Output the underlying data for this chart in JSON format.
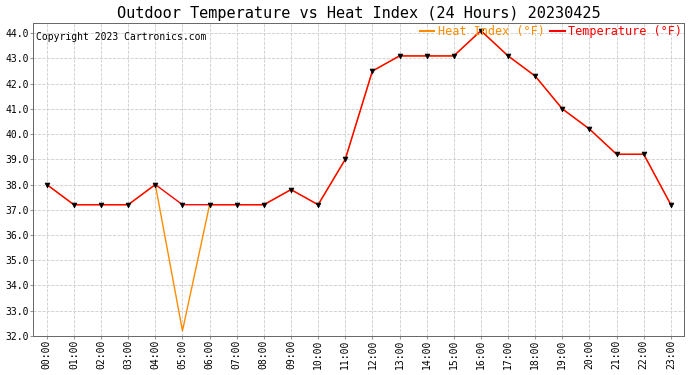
{
  "title": "Outdoor Temperature vs Heat Index (24 Hours) 20230425",
  "copyright": "Copyright 2023 Cartronics.com",
  "legend_heat": "Heat Index (°F)",
  "legend_temp": "Temperature (°F)",
  "hours": [
    "00:00",
    "01:00",
    "02:00",
    "03:00",
    "04:00",
    "05:00",
    "06:00",
    "07:00",
    "08:00",
    "09:00",
    "10:00",
    "11:00",
    "12:00",
    "13:00",
    "14:00",
    "15:00",
    "16:00",
    "17:00",
    "18:00",
    "19:00",
    "20:00",
    "21:00",
    "22:00",
    "23:00"
  ],
  "temperature": [
    38.0,
    37.2,
    37.2,
    37.2,
    38.0,
    37.2,
    37.2,
    37.2,
    37.2,
    37.8,
    37.2,
    39.0,
    42.5,
    43.1,
    43.1,
    43.1,
    44.1,
    43.1,
    42.3,
    41.0,
    40.2,
    39.2,
    39.2,
    37.2
  ],
  "heat_index": [
    38.0,
    37.2,
    37.2,
    37.2,
    38.0,
    32.2,
    37.2,
    37.2,
    37.2,
    37.8,
    37.2,
    39.0,
    42.5,
    43.1,
    43.1,
    43.1,
    44.1,
    43.1,
    42.3,
    41.0,
    40.2,
    39.2,
    39.2,
    37.2
  ],
  "temp_color": "#ff0000",
  "heat_color": "#ff8c00",
  "marker_color": "#000000",
  "ylim_min": 32.0,
  "ylim_max": 44.4,
  "background_color": "#ffffff",
  "grid_color": "#cccccc",
  "title_fontsize": 11,
  "tick_fontsize": 7,
  "legend_fontsize": 8.5,
  "copyright_fontsize": 7
}
